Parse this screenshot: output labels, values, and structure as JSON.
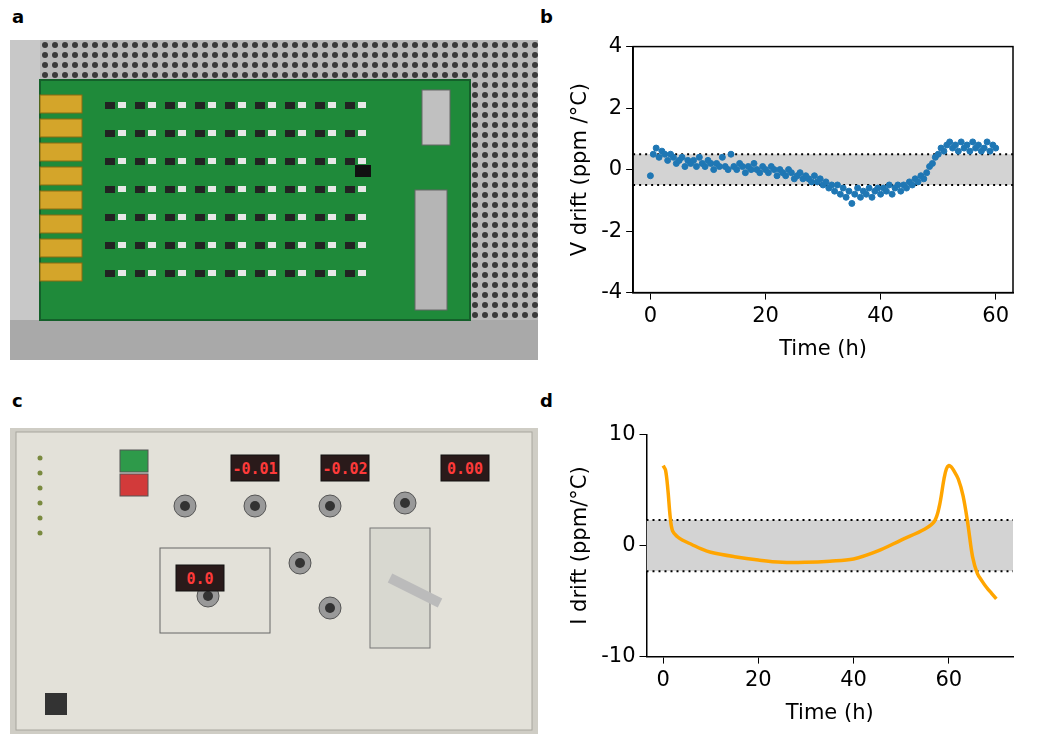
{
  "photos": [
    {
      "panel": "a"
    },
    {
      "panel": "c",
      "displays": [
        "-0.01",
        "-0.02",
        "0.00",
        "0.0"
      ]
    }
  ],
  "chart_data": [
    {
      "panel": "b",
      "type": "scatter",
      "x_label": "Time (h)",
      "y_label": "V drift (ppm /°C)",
      "xlim": [
        -3,
        63
      ],
      "xticks": [
        0,
        20,
        40,
        60
      ],
      "ylim": [
        -4,
        4
      ],
      "yticks": [
        -4,
        -2,
        0,
        2,
        4
      ],
      "band": [
        -0.5,
        0.5
      ],
      "grid": false,
      "color": "#1f77b4",
      "marker": "circle",
      "x": [
        0,
        0.5,
        1,
        1.5,
        2,
        2.5,
        3,
        3.5,
        4,
        4.5,
        5,
        5.5,
        6,
        6.5,
        7,
        7.5,
        8,
        8.5,
        9,
        9.5,
        10,
        10.5,
        11,
        11.5,
        12,
        12.5,
        13,
        13.5,
        14,
        14.5,
        15,
        15.5,
        16,
        16.5,
        17,
        17.5,
        18,
        18.5,
        19,
        19.5,
        20,
        20.5,
        21,
        21.5,
        22,
        22.5,
        23,
        23.5,
        24,
        24.5,
        25,
        25.5,
        26,
        26.5,
        27,
        27.5,
        28,
        28.5,
        29,
        29.5,
        30,
        30.5,
        31,
        31.5,
        32,
        32.5,
        33,
        33.5,
        34,
        34.5,
        35,
        35.5,
        36,
        36.5,
        37,
        37.5,
        38,
        38.5,
        39,
        39.5,
        40,
        40.5,
        41,
        41.5,
        42,
        42.5,
        43,
        43.5,
        44,
        44.5,
        45,
        45.5,
        46,
        46.5,
        47,
        47.5,
        48,
        48.5,
        49,
        49.5,
        50,
        50.5,
        51,
        51.5,
        52,
        52.5,
        53,
        53.5,
        54,
        54.5,
        55,
        55.5,
        56,
        56.5,
        57,
        57.5,
        58,
        58.5,
        59,
        59.5,
        60
      ],
      "values": [
        -0.2,
        0.5,
        0.7,
        0.4,
        0.6,
        0.5,
        0.3,
        0.5,
        0.4,
        0.2,
        0.3,
        0.4,
        0.1,
        0.3,
        0.2,
        0.3,
        0.1,
        0.4,
        0.2,
        0.1,
        0.3,
        0.2,
        0.0,
        0.2,
        0.1,
        0.4,
        0.1,
        0.0,
        0.5,
        0.1,
        0.0,
        0.2,
        0.1,
        -0.1,
        0.1,
        0.0,
        0.2,
        0.0,
        -0.1,
        0.1,
        0.0,
        -0.1,
        0.1,
        0.0,
        -0.2,
        0.0,
        -0.1,
        -0.2,
        0.0,
        -0.1,
        -0.3,
        -0.2,
        -0.1,
        -0.3,
        -0.2,
        -0.3,
        -0.4,
        -0.2,
        -0.4,
        -0.3,
        -0.5,
        -0.4,
        -0.6,
        -0.5,
        -0.7,
        -0.5,
        -0.8,
        -0.6,
        -0.9,
        -0.7,
        -1.1,
        -0.8,
        -0.6,
        -0.9,
        -0.7,
        -0.8,
        -0.6,
        -0.9,
        -0.7,
        -0.6,
        -0.8,
        -0.6,
        -0.7,
        -0.5,
        -0.8,
        -0.6,
        -0.5,
        -0.7,
        -0.5,
        -0.6,
        -0.4,
        -0.5,
        -0.3,
        -0.4,
        -0.2,
        -0.3,
        -0.1,
        0.1,
        0.2,
        0.4,
        0.5,
        0.7,
        0.6,
        0.8,
        0.9,
        0.7,
        0.8,
        0.6,
        0.9,
        0.7,
        0.8,
        0.6,
        0.9,
        0.7,
        0.8,
        0.6,
        0.7,
        0.9,
        0.6,
        0.8,
        0.7
      ]
    },
    {
      "panel": "d",
      "type": "line",
      "x_label": "Time (h)",
      "y_label": "I drift (ppm/°C)",
      "xlim": [
        -3.5,
        73.5
      ],
      "xticks": [
        0,
        20,
        40,
        60
      ],
      "ylim": [
        -10,
        10
      ],
      "yticks": [
        -10,
        0,
        10
      ],
      "band": [
        -2.3,
        2.3
      ],
      "grid": false,
      "color": "#ffa500",
      "line_style": "solid",
      "x": [
        0,
        0.5,
        1,
        1.5,
        2,
        3,
        4,
        6,
        8,
        10,
        15,
        20,
        25,
        30,
        35,
        40,
        45,
        50,
        55,
        57,
        58,
        59,
        59.5,
        60,
        60.5,
        61,
        62,
        63,
        64,
        65,
        66,
        67,
        68,
        69,
        70
      ],
      "values": [
        7.2,
        6.8,
        5.0,
        2.5,
        1.3,
        0.8,
        0.5,
        0.1,
        -0.3,
        -0.6,
        -1.0,
        -1.3,
        -1.5,
        -1.5,
        -1.4,
        -1.2,
        -0.5,
        0.5,
        1.5,
        2.2,
        3.5,
        6.0,
        6.9,
        7.2,
        7.1,
        6.8,
        6.0,
        4.5,
        2.0,
        -1.0,
        -2.5,
        -3.2,
        -3.8,
        -4.3,
        -4.8
      ]
    }
  ]
}
